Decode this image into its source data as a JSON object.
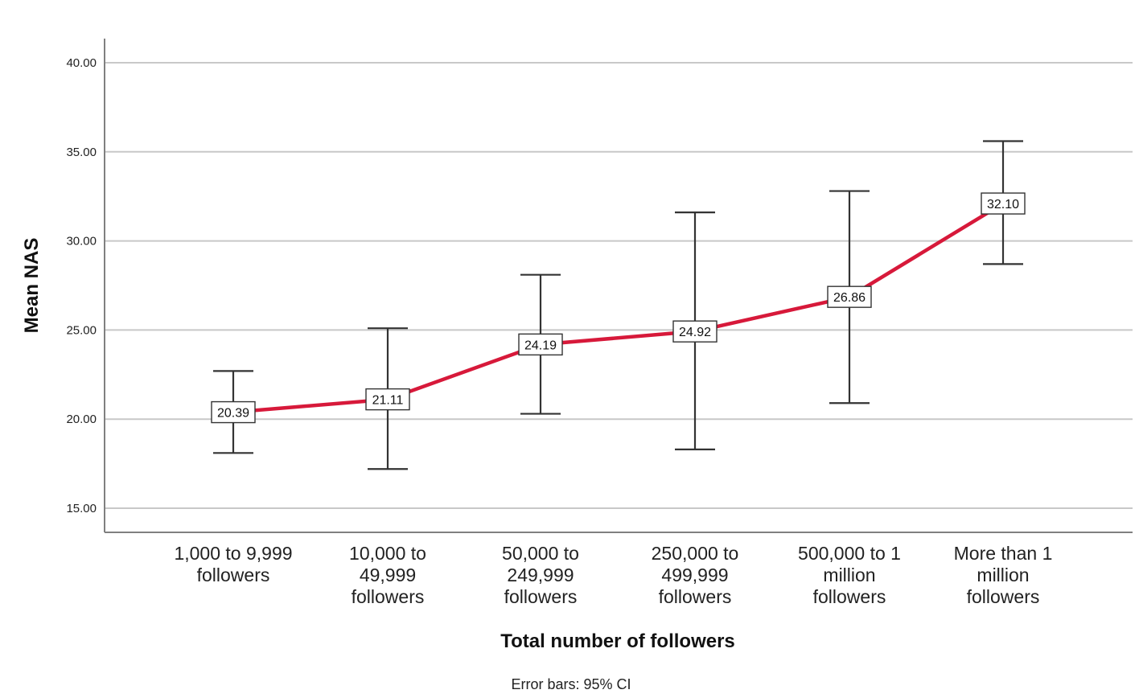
{
  "chart_data": {
    "type": "line",
    "title": "",
    "xlabel": "Total number of followers",
    "ylabel": "Mean NAS",
    "ylim": [
      15,
      40
    ],
    "yticks": [
      "15.00",
      "20.00",
      "25.00",
      "30.00",
      "35.00",
      "40.00"
    ],
    "grid": true,
    "note": "Error bars: 95% CI",
    "series_color": "#d7193a",
    "categories": [
      [
        "1,000 to 9,999",
        "followers"
      ],
      [
        "10,000 to",
        "49,999",
        "followers"
      ],
      [
        "50,000 to",
        "249,999",
        "followers"
      ],
      [
        "250,000 to",
        "499,999",
        "followers"
      ],
      [
        "500,000 to 1",
        "million",
        "followers"
      ],
      [
        "More than 1",
        "million",
        "followers"
      ]
    ],
    "values": [
      20.39,
      21.11,
      24.19,
      24.92,
      26.86,
      32.1
    ],
    "value_labels": [
      "20.39",
      "21.11",
      "24.19",
      "24.92",
      "26.86",
      "32.10"
    ],
    "ci_lower": [
      18.1,
      17.2,
      20.3,
      18.3,
      20.9,
      28.7
    ],
    "ci_upper": [
      22.7,
      25.1,
      28.1,
      31.6,
      32.8,
      35.6
    ]
  }
}
